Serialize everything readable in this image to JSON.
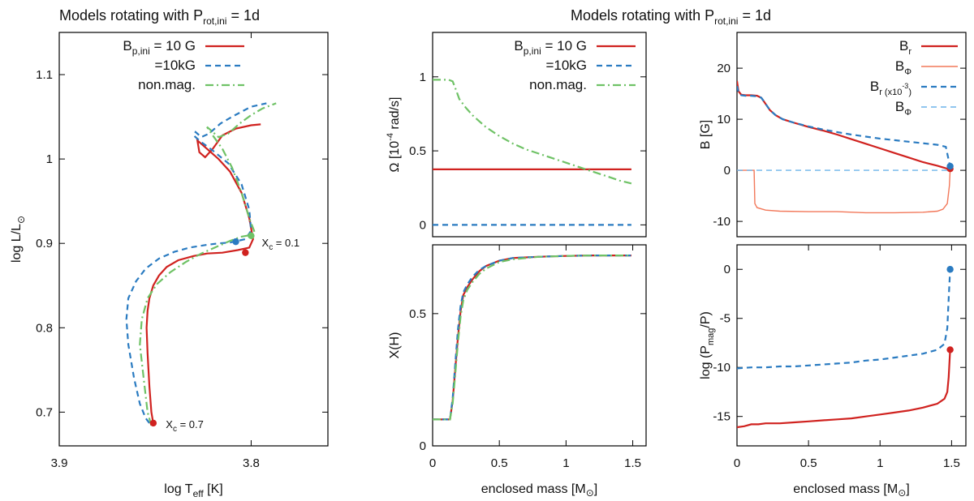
{
  "figure": {
    "title_left": "Models rotating with P",
    "title_left_sub": "rot,ini",
    "title_left_tail": " = 1d",
    "title_right": "Models rotating with P",
    "title_right_sub": "rot,ini",
    "title_right_tail": " = 1d"
  },
  "colors": {
    "red": "#d0221f",
    "blue": "#2a7bc1",
    "green": "#6fc266",
    "salmon": "#f2785a",
    "lightblue": "#6cb4ea"
  },
  "chart_data": [
    {
      "id": "hrd",
      "type": "line",
      "xlabel": "log T",
      "xlabel_sub": "eff",
      "xlabel_tail": " [K]",
      "ylabel": "log L/L",
      "ylabel_sym": "⊙",
      "xlim": [
        3.9,
        3.76
      ],
      "ylim": [
        0.66,
        1.15
      ],
      "xticks": [
        3.9,
        3.8
      ],
      "xtick_labels": [
        "3.9",
        "3.8"
      ],
      "yticks": [
        0.7,
        0.8,
        0.9,
        1.0,
        1.1
      ],
      "ytick_labels": [
        "0.7",
        "0.8",
        "0.9",
        "1",
        "1.1"
      ],
      "legend": [
        {
          "name": "B",
          "sub": "p,ini",
          "tail": " = 10 G",
          "style": "solid",
          "color": "red"
        },
        {
          "name": "=10kG",
          "sub": "",
          "tail": "",
          "style": "dashed",
          "color": "blue"
        },
        {
          "name": "non.mag.",
          "sub": "",
          "tail": "",
          "style": "dashdot",
          "color": "green"
        }
      ],
      "annotations": [
        {
          "text": "X",
          "sub": "c",
          "tail": " = 0.1",
          "x": 3.797,
          "y": 0.901
        },
        {
          "text": "X",
          "sub": "c",
          "tail": " = 0.7",
          "x": 3.847,
          "y": 0.686
        }
      ],
      "series": [
        {
          "name": "red",
          "style": "solid",
          "color": "red",
          "x": [
            3.851,
            3.852,
            3.853,
            3.854,
            3.8545,
            3.854,
            3.853,
            3.851,
            3.848,
            3.844,
            3.838,
            3.83,
            3.823,
            3.815,
            3.807,
            3.801,
            3.799,
            3.801,
            3.805,
            3.811,
            3.817,
            3.822,
            3.826,
            3.828,
            3.827,
            3.824,
            3.82,
            3.815,
            3.808,
            3.8,
            3.795
          ],
          "y": [
            0.687,
            0.7,
            0.73,
            0.77,
            0.8,
            0.82,
            0.835,
            0.85,
            0.862,
            0.872,
            0.88,
            0.885,
            0.888,
            0.889,
            0.892,
            0.895,
            0.905,
            0.93,
            0.96,
            0.985,
            1.0,
            1.01,
            1.018,
            1.022,
            1.008,
            1.002,
            1.012,
            1.028,
            1.036,
            1.04,
            1.041
          ]
        },
        {
          "name": "blue",
          "style": "dashed",
          "color": "blue",
          "x": [
            3.853,
            3.855,
            3.858,
            3.861,
            3.864,
            3.865,
            3.864,
            3.86,
            3.855,
            3.848,
            3.84,
            3.832,
            3.824,
            3.817,
            3.811,
            3.807,
            3.803,
            3.8,
            3.801,
            3.805,
            3.812,
            3.82,
            3.826,
            3.83,
            3.829,
            3.826,
            3.822,
            3.816,
            3.81,
            3.805,
            3.8,
            3.792
          ],
          "y": [
            0.687,
            0.693,
            0.71,
            0.74,
            0.78,
            0.81,
            0.835,
            0.855,
            0.87,
            0.882,
            0.89,
            0.895,
            0.898,
            0.9,
            0.901,
            0.903,
            0.905,
            0.915,
            0.94,
            0.97,
            0.995,
            1.01,
            1.02,
            1.028,
            1.032,
            1.026,
            1.03,
            1.042,
            1.05,
            1.056,
            1.062,
            1.066
          ]
        },
        {
          "name": "green",
          "style": "dashdot",
          "color": "green",
          "x": [
            3.852,
            3.854,
            3.856,
            3.858,
            3.857,
            3.854,
            3.849,
            3.842,
            3.834,
            3.826,
            3.818,
            3.811,
            3.805,
            3.8,
            3.798,
            3.801,
            3.805,
            3.81,
            3.815,
            3.82,
            3.823,
            3.821,
            3.817,
            3.812,
            3.806,
            3.8,
            3.794,
            3.787
          ],
          "y": [
            0.684,
            0.7,
            0.74,
            0.78,
            0.81,
            0.835,
            0.852,
            0.866,
            0.878,
            0.888,
            0.896,
            0.903,
            0.908,
            0.91,
            0.912,
            0.93,
            0.96,
            0.99,
            1.012,
            1.028,
            1.038,
            1.034,
            1.026,
            1.03,
            1.042,
            1.052,
            1.06,
            1.066
          ]
        }
      ],
      "markers": [
        {
          "x": 3.851,
          "y": 0.687,
          "color": "red"
        },
        {
          "x": 3.803,
          "y": 0.889,
          "color": "red"
        },
        {
          "x": 3.808,
          "y": 0.902,
          "color": "blue"
        },
        {
          "x": 3.8,
          "y": 0.909,
          "color": "green"
        }
      ]
    },
    {
      "id": "omega",
      "type": "line",
      "ylabel": "Ω [10",
      "ylabel_sup": "-4",
      "ylabel_tail": " rad/s]",
      "xlim": [
        0,
        1.6
      ],
      "ylim": [
        -0.08,
        1.3
      ],
      "yticks": [
        0,
        0.5,
        1
      ],
      "ytick_labels": [
        "0",
        "0.5",
        "1"
      ],
      "legend": [
        {
          "name": "B",
          "sub": "p,ini",
          "tail": " = 10 G",
          "style": "solid",
          "color": "red"
        },
        {
          "name": "=10kG",
          "sub": "",
          "tail": "",
          "style": "dashed",
          "color": "blue"
        },
        {
          "name": "non.mag.",
          "sub": "",
          "tail": "",
          "style": "dashdot",
          "color": "green"
        }
      ],
      "series": [
        {
          "name": "red",
          "style": "solid",
          "color": "red",
          "x": [
            0,
            1.49
          ],
          "y": [
            0.375,
            0.375
          ]
        },
        {
          "name": "blue",
          "style": "dashed",
          "color": "blue",
          "x": [
            0,
            1.49
          ],
          "y": [
            0.0,
            0.0
          ]
        },
        {
          "name": "green",
          "style": "dashdot",
          "color": "green",
          "x": [
            0,
            0.12,
            0.15,
            0.18,
            0.2,
            0.25,
            0.3,
            0.4,
            0.5,
            0.6,
            0.7,
            0.8,
            0.9,
            1.0,
            1.1,
            1.2,
            1.3,
            1.4,
            1.49
          ],
          "y": [
            0.98,
            0.98,
            0.97,
            0.9,
            0.85,
            0.79,
            0.74,
            0.66,
            0.6,
            0.55,
            0.51,
            0.48,
            0.45,
            0.42,
            0.39,
            0.36,
            0.33,
            0.3,
            0.28
          ]
        }
      ]
    },
    {
      "id": "xh",
      "type": "line",
      "ylabel": "X(H)",
      "xlabel": "enclosed mass [M",
      "xlabel_sym": "⊙",
      "xlabel_tail": "]",
      "xlim": [
        0,
        1.6
      ],
      "ylim": [
        0,
        0.76
      ],
      "xticks": [
        0,
        0.5,
        1,
        1.5
      ],
      "xtick_labels": [
        "0",
        "0.5",
        "1",
        "1.5"
      ],
      "yticks": [
        0,
        0.5
      ],
      "ytick_labels": [
        "0",
        "0.5"
      ],
      "series": [
        {
          "name": "red",
          "style": "solid",
          "color": "red",
          "x": [
            0,
            0.13,
            0.15,
            0.17,
            0.19,
            0.21,
            0.23,
            0.26,
            0.3,
            0.35,
            0.4,
            0.5,
            0.6,
            0.8,
            1.0,
            1.2,
            1.49
          ],
          "y": [
            0.1,
            0.1,
            0.17,
            0.29,
            0.41,
            0.51,
            0.57,
            0.6,
            0.63,
            0.66,
            0.68,
            0.7,
            0.71,
            0.715,
            0.718,
            0.72,
            0.72
          ]
        },
        {
          "name": "blue",
          "style": "dashed",
          "color": "blue",
          "x": [
            0,
            0.13,
            0.15,
            0.17,
            0.19,
            0.21,
            0.23,
            0.26,
            0.3,
            0.35,
            0.4,
            0.5,
            0.6,
            0.8,
            1.0,
            1.2,
            1.49
          ],
          "y": [
            0.1,
            0.1,
            0.18,
            0.31,
            0.44,
            0.53,
            0.58,
            0.61,
            0.64,
            0.665,
            0.68,
            0.7,
            0.71,
            0.715,
            0.718,
            0.72,
            0.72
          ]
        },
        {
          "name": "green",
          "style": "dashdot",
          "color": "green",
          "x": [
            0,
            0.13,
            0.15,
            0.17,
            0.19,
            0.21,
            0.23,
            0.26,
            0.3,
            0.35,
            0.4,
            0.5,
            0.6,
            0.8,
            1.0,
            1.2,
            1.49
          ],
          "y": [
            0.1,
            0.1,
            0.16,
            0.27,
            0.39,
            0.49,
            0.55,
            0.59,
            0.62,
            0.65,
            0.67,
            0.695,
            0.705,
            0.715,
            0.718,
            0.72,
            0.72
          ]
        }
      ]
    },
    {
      "id": "bfield",
      "type": "line",
      "ylabel": "B [G]",
      "xlim": [
        0,
        1.6
      ],
      "ylim": [
        -13,
        27
      ],
      "yticks": [
        -10,
        0,
        10,
        20
      ],
      "ytick_labels": [
        "-10",
        "0",
        "10",
        "20"
      ],
      "legend": [
        {
          "name": "B",
          "sub": "r",
          "tail": "",
          "style": "solid",
          "color": "red"
        },
        {
          "name": "B",
          "sub": "Φ",
          "tail": "",
          "style": "solid",
          "color": "salmon"
        },
        {
          "name": "B",
          "sub": "r (x10",
          "sup": "-3",
          "sub2": ")",
          "tail": "",
          "style": "dashed",
          "color": "blue"
        },
        {
          "name": "B",
          "sub": "Φ",
          "tail": "",
          "style": "dashed",
          "color": "lightblue"
        }
      ],
      "series": [
        {
          "name": "Br",
          "style": "solid",
          "color": "red",
          "x": [
            0,
            0.01,
            0.03,
            0.06,
            0.1,
            0.14,
            0.17,
            0.2,
            0.23,
            0.27,
            0.32,
            0.4,
            0.5,
            0.6,
            0.7,
            0.8,
            0.9,
            1.0,
            1.1,
            1.2,
            1.3,
            1.4,
            1.46,
            1.49
          ],
          "y": [
            17.5,
            15.5,
            14.8,
            14.7,
            14.7,
            14.6,
            14.2,
            13.0,
            11.8,
            10.8,
            10.0,
            9.3,
            8.5,
            7.8,
            7.0,
            6.1,
            5.2,
            4.3,
            3.4,
            2.5,
            1.6,
            0.9,
            0.4,
            0.2
          ]
        },
        {
          "name": "Bphi",
          "style": "solid",
          "color": "salmon",
          "x": [
            0,
            0.12,
            0.125,
            0.14,
            0.2,
            0.3,
            0.5,
            0.7,
            0.9,
            1.1,
            1.3,
            1.4,
            1.44,
            1.47,
            1.485,
            1.49
          ],
          "y": [
            0,
            0,
            -6.5,
            -7.3,
            -7.8,
            -8.0,
            -8.1,
            -8.1,
            -8.3,
            -8.3,
            -8.2,
            -8.0,
            -7.6,
            -6.5,
            -3.0,
            0
          ]
        },
        {
          "name": "Br_x1e-3",
          "style": "dashed",
          "color": "blue",
          "x": [
            0,
            0.01,
            0.03,
            0.06,
            0.1,
            0.14,
            0.17,
            0.2,
            0.23,
            0.27,
            0.32,
            0.4,
            0.5,
            0.6,
            0.7,
            0.8,
            0.9,
            1.0,
            1.1,
            1.2,
            1.3,
            1.4,
            1.46,
            1.48,
            1.49
          ],
          "y": [
            16.5,
            15.3,
            14.7,
            14.6,
            14.6,
            14.5,
            14.2,
            13.0,
            11.8,
            10.8,
            10.0,
            9.3,
            8.6,
            8.0,
            7.5,
            7.0,
            6.6,
            6.2,
            5.9,
            5.6,
            5.3,
            5.0,
            4.6,
            2.0,
            0.8
          ]
        },
        {
          "name": "Bphi_dashed",
          "style": "dashed",
          "color": "lightblue",
          "x": [
            0,
            1.49
          ],
          "y": [
            0,
            0
          ]
        }
      ],
      "markers": [
        {
          "x": 1.49,
          "y": 0.3,
          "color": "red"
        },
        {
          "x": 1.49,
          "y": 0.8,
          "color": "blue"
        }
      ]
    },
    {
      "id": "pmag",
      "type": "line",
      "ylabel": "log (P",
      "ylabel_sub": "mag",
      "ylabel_tail": "/P)",
      "xlabel": "enclosed mass [M",
      "xlabel_sym": "⊙",
      "xlabel_tail": "]",
      "xlim": [
        0,
        1.6
      ],
      "ylim": [
        -18,
        2.5
      ],
      "xticks": [
        0,
        0.5,
        1,
        1.5
      ],
      "xtick_labels": [
        "0",
        "0.5",
        "1",
        "1.5"
      ],
      "yticks": [
        -15,
        -10,
        -5,
        0
      ],
      "ytick_labels": [
        "-15",
        "-10",
        "-5",
        "0"
      ],
      "series": [
        {
          "name": "red",
          "style": "solid",
          "color": "red",
          "x": [
            0,
            0.05,
            0.1,
            0.15,
            0.2,
            0.3,
            0.4,
            0.5,
            0.6,
            0.7,
            0.8,
            0.9,
            1.0,
            1.1,
            1.2,
            1.3,
            1.4,
            1.45,
            1.47,
            1.48,
            1.49
          ],
          "y": [
            -16.1,
            -16.0,
            -15.8,
            -15.8,
            -15.7,
            -15.7,
            -15.6,
            -15.5,
            -15.4,
            -15.3,
            -15.2,
            -15.0,
            -14.8,
            -14.6,
            -14.4,
            -14.1,
            -13.7,
            -13.2,
            -12.5,
            -11.0,
            -8.2
          ]
        },
        {
          "name": "blue",
          "style": "dashed",
          "color": "blue",
          "x": [
            0,
            0.1,
            0.2,
            0.3,
            0.4,
            0.5,
            0.6,
            0.7,
            0.8,
            0.9,
            1.0,
            1.1,
            1.2,
            1.3,
            1.4,
            1.45,
            1.47,
            1.48,
            1.49
          ],
          "y": [
            -10.1,
            -10.0,
            -10.0,
            -9.9,
            -9.9,
            -9.8,
            -9.7,
            -9.6,
            -9.5,
            -9.3,
            -9.2,
            -9.0,
            -8.8,
            -8.6,
            -8.2,
            -7.6,
            -6.0,
            -3.0,
            0.0
          ]
        }
      ],
      "markers": [
        {
          "x": 1.49,
          "y": -8.2,
          "color": "red"
        },
        {
          "x": 1.49,
          "y": 0.0,
          "color": "blue"
        }
      ]
    }
  ]
}
